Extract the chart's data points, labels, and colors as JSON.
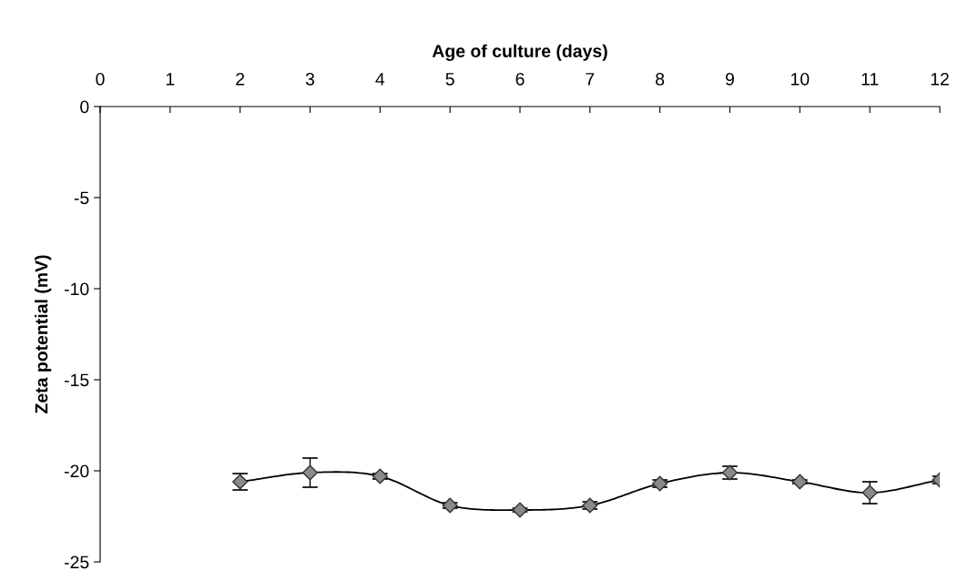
{
  "chart_data": {
    "type": "line",
    "xlabel": "Age of culture (days)",
    "ylabel": "Zeta potential (mV)",
    "x": [
      2,
      3,
      4,
      5,
      6,
      7,
      8,
      9,
      10,
      11,
      12
    ],
    "series": [
      {
        "color": "#000000",
        "values": [
          -20.6,
          -20.1,
          -20.3,
          -21.9,
          -22.15,
          -21.9,
          -20.7,
          -20.1,
          -20.6,
          -21.2,
          -20.5
        ],
        "errors": [
          0.45,
          0.8,
          0.15,
          0.15,
          0.1,
          0.2,
          0.2,
          0.35,
          0.1,
          0.6,
          0.2
        ]
      }
    ],
    "xlim": [
      0,
      12
    ],
    "xticks": [
      0,
      1,
      2,
      3,
      4,
      5,
      6,
      7,
      8,
      9,
      10,
      11,
      12
    ],
    "ylim": [
      -25,
      0
    ],
    "yticks": [
      0,
      -5,
      -10,
      -15,
      -20,
      -25
    ],
    "marker": "diamond",
    "line_style": "solid",
    "grid": false,
    "legend": false
  }
}
